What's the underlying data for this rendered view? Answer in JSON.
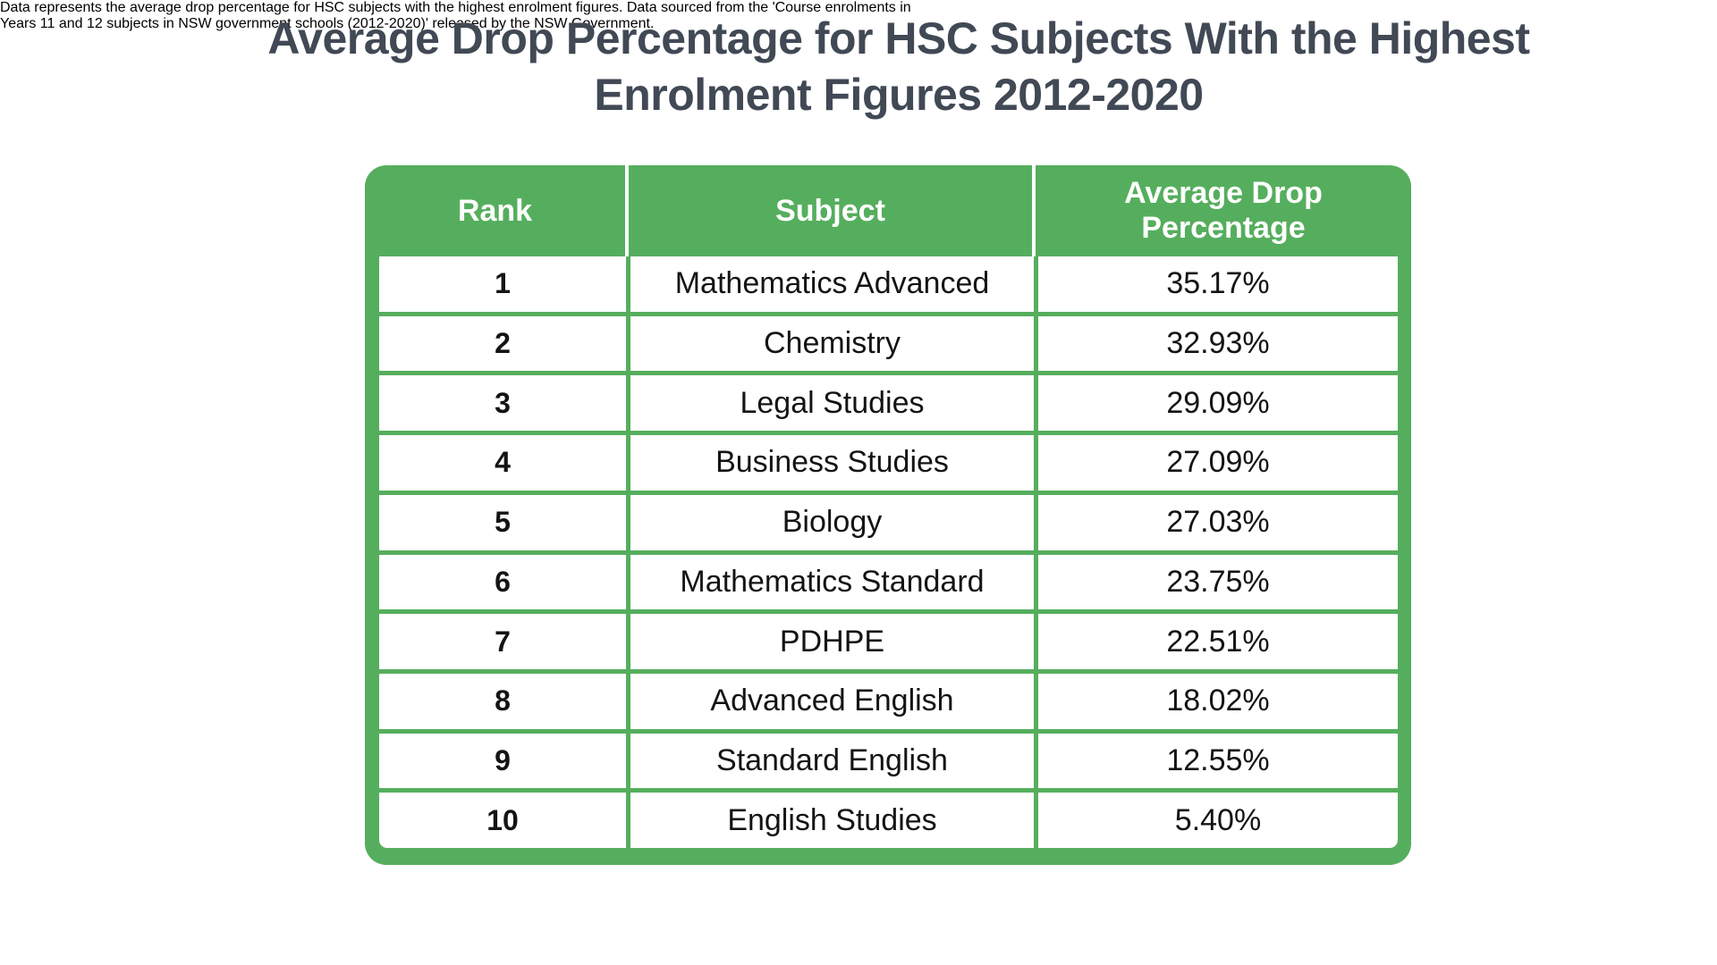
{
  "title": {
    "line1": "Average Drop Percentage for HSC Subjects With the Highest",
    "line2": "Enrolment Figures 2012-2020"
  },
  "table": {
    "headers": [
      "Rank",
      "Subject",
      "Average Drop Percentage"
    ],
    "rows": [
      {
        "rank": "1",
        "subject": "Mathematics Advanced",
        "avg_drop": "35.17%"
      },
      {
        "rank": "2",
        "subject": "Chemistry",
        "avg_drop": "32.93%"
      },
      {
        "rank": "3",
        "subject": "Legal Studies",
        "avg_drop": "29.09%"
      },
      {
        "rank": "4",
        "subject": "Business Studies",
        "avg_drop": "27.09%"
      },
      {
        "rank": "5",
        "subject": "Biology",
        "avg_drop": "27.03%"
      },
      {
        "rank": "6",
        "subject": "Mathematics Standard",
        "avg_drop": "23.75%"
      },
      {
        "rank": "7",
        "subject": "PDHPE",
        "avg_drop": "22.51%"
      },
      {
        "rank": "8",
        "subject": "Advanced English",
        "avg_drop": "18.02%"
      },
      {
        "rank": "9",
        "subject": "Standard English",
        "avg_drop": "12.55%"
      },
      {
        "rank": "10",
        "subject": "English Studies",
        "avg_drop": "5.40%"
      }
    ]
  },
  "footnote": {
    "line1": "Data represents the average drop percentage for HSC subjects with the highest enrolment figures. Data sourced from the 'Course enrolments in",
    "line2": "Years 11 and 12 subjects in NSW government schools (2012-2020)' released by the NSW Government."
  },
  "colors": {
    "accent_green": "#55AE5D",
    "title_text": "#414955",
    "body_text": "#141414",
    "header_text": "#FFFFFF",
    "background": "#FFFFFF"
  },
  "chart_data": {
    "type": "table",
    "title": "Average Drop Percentage for HSC Subjects With the Highest Enrolment Figures 2012-2020",
    "columns": [
      "Rank",
      "Subject",
      "Average Drop Percentage"
    ],
    "rows": [
      [
        1,
        "Mathematics Advanced",
        35.17
      ],
      [
        2,
        "Chemistry",
        32.93
      ],
      [
        3,
        "Legal Studies",
        29.09
      ],
      [
        4,
        "Business Studies",
        27.09
      ],
      [
        5,
        "Biology",
        27.03
      ],
      [
        6,
        "Mathematics Standard",
        23.75
      ],
      [
        7,
        "PDHPE",
        22.51
      ],
      [
        8,
        "Advanced English",
        18.02
      ],
      [
        9,
        "Standard English",
        12.55
      ],
      [
        10,
        "English Studies",
        5.4
      ]
    ],
    "values_unit": "percent",
    "note": "Data represents the average drop percentage for HSC subjects with the highest enrolment figures. Data sourced from the 'Course enrolments in Years 11 and 12 subjects in NSW government schools (2012-2020)' released by the NSW Government."
  }
}
